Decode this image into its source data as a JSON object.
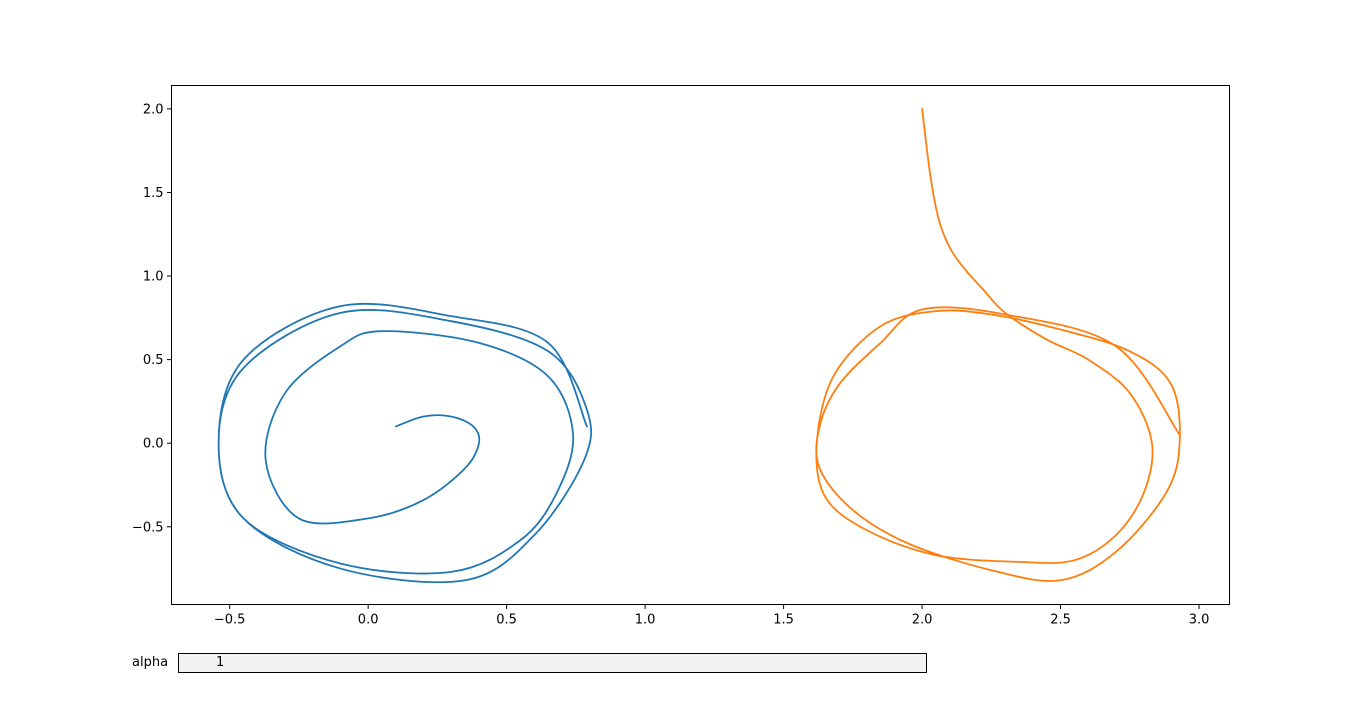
{
  "chart_data": {
    "type": "line",
    "title": "",
    "xlabel": "",
    "ylabel": "",
    "xlim": [
      -0.71,
      3.11
    ],
    "ylim": [
      -0.965,
      2.14
    ],
    "x_ticks": [
      -0.5,
      0.0,
      0.5,
      1.0,
      1.5,
      2.0,
      2.5,
      3.0
    ],
    "x_tick_labels": [
      "−0.5",
      "0.0",
      "0.5",
      "1.0",
      "1.5",
      "2.0",
      "2.5",
      "3.0"
    ],
    "y_ticks": [
      -0.5,
      0.0,
      0.5,
      1.0,
      1.5,
      2.0
    ],
    "y_tick_labels": [
      "−0.5",
      "0.0",
      "0.5",
      "1.0",
      "1.5",
      "2.0"
    ],
    "grid": false,
    "series": [
      {
        "color": "#1f77b4",
        "start": [
          0.1,
          0.1
        ],
        "x": [
          0.1,
          0.2,
          0.3,
          0.38,
          0.4,
          0.35,
          0.2,
          0.0,
          -0.25,
          -0.37,
          -0.3,
          -0.1,
          0.05,
          0.4,
          0.65,
          0.74,
          0.68,
          0.55,
          0.3,
          -0.1,
          -0.45,
          -0.54,
          -0.45,
          -0.1,
          0.3,
          0.65,
          0.79,
          0.78,
          0.6,
          0.35,
          -0.1,
          -0.45,
          -0.54,
          -0.45,
          -0.1,
          0.3,
          0.65,
          0.79
        ],
        "y": [
          0.1,
          0.16,
          0.16,
          0.1,
          0.0,
          -0.15,
          -0.34,
          -0.45,
          -0.45,
          -0.1,
          0.3,
          0.58,
          0.67,
          0.6,
          0.4,
          0.05,
          -0.3,
          -0.58,
          -0.77,
          -0.72,
          -0.45,
          0.0,
          0.45,
          0.78,
          0.73,
          0.55,
          0.2,
          -0.1,
          -0.55,
          -0.82,
          -0.75,
          -0.45,
          0.0,
          0.5,
          0.82,
          0.76,
          0.6,
          0.1
        ]
      },
      {
        "color": "#ff7f0e",
        "start": [
          2.0,
          2.0
        ],
        "x": [
          2.0,
          2.03,
          2.06,
          2.1,
          2.15,
          2.22,
          2.3,
          2.45,
          2.6,
          2.75,
          2.83,
          2.8,
          2.7,
          2.55,
          2.35,
          2.05,
          1.8,
          1.65,
          1.62,
          1.68,
          1.85,
          2.05,
          2.25,
          2.5,
          2.75,
          2.9,
          2.93,
          2.88,
          2.7,
          2.5,
          2.25,
          1.95,
          1.75,
          1.63,
          1.63,
          1.7,
          1.85,
          2.0,
          2.3,
          2.7,
          2.93
        ],
        "y": [
          2.0,
          1.6,
          1.34,
          1.17,
          1.05,
          0.92,
          0.78,
          0.62,
          0.5,
          0.3,
          0.0,
          -0.3,
          -0.55,
          -0.7,
          -0.71,
          -0.67,
          -0.52,
          -0.32,
          0.0,
          0.4,
          0.7,
          0.79,
          0.77,
          0.68,
          0.55,
          0.35,
          0.0,
          -0.3,
          -0.65,
          -0.82,
          -0.76,
          -0.6,
          -0.4,
          -0.15,
          0.1,
          0.35,
          0.6,
          0.8,
          0.77,
          0.58,
          0.05
        ]
      }
    ]
  },
  "textbox": {
    "label": "alpha",
    "value": "1"
  }
}
